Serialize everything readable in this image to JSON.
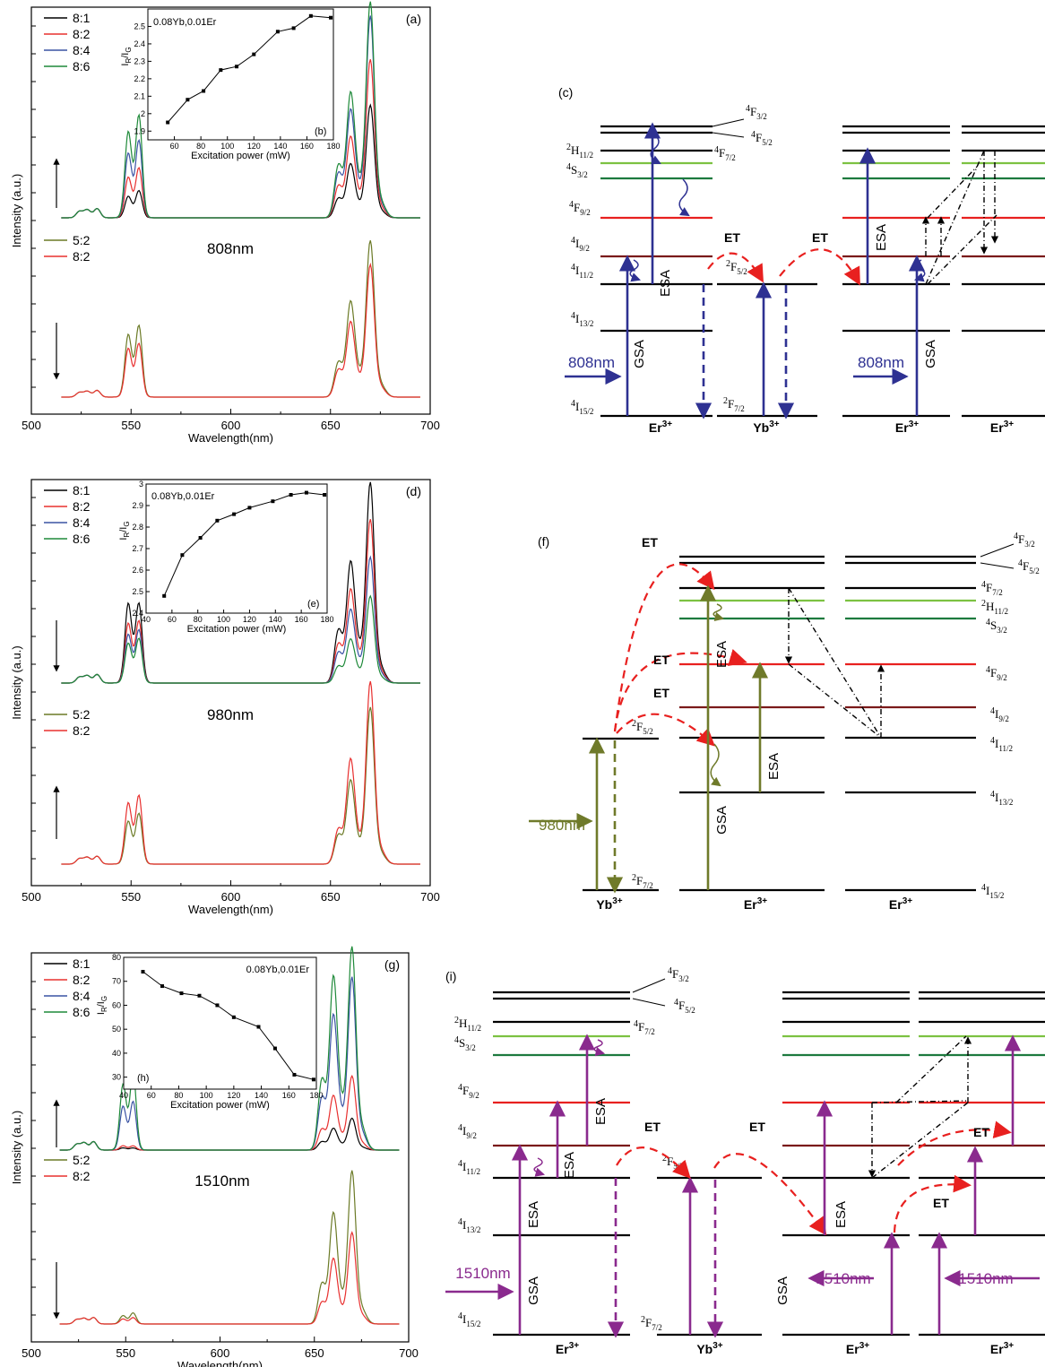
{
  "chart_data": [
    {
      "id": "a",
      "type": "line",
      "panel_label": "(a)",
      "xlabel": "Wavelength(nm)",
      "ylabel": "Intensity (a.u.)",
      "xlim": [
        500,
        700
      ],
      "xticks": [
        500,
        550,
        600,
        650,
        700
      ],
      "excitation": "808nm",
      "legend_top": [
        "8:1",
        "8:2",
        "8:4",
        "8:6"
      ],
      "legend_bottom": [
        "5:2",
        "8:2"
      ],
      "series_top": [
        {
          "name": "8:1",
          "color": "#000000",
          "g1": 0.09,
          "g2": 0.12,
          "r1": 0.17,
          "r2": 0.23,
          "r3": 0.53
        },
        {
          "name": "8:2",
          "color": "#e8302f",
          "g1": 0.17,
          "g2": 0.22,
          "r1": 0.28,
          "r2": 0.34,
          "r3": 0.74
        },
        {
          "name": "8:4",
          "color": "#3a53a4",
          "g1": 0.27,
          "g2": 0.34,
          "r1": 0.39,
          "r2": 0.45,
          "r3": 0.94
        },
        {
          "name": "8:6",
          "color": "#1f8a3a",
          "g1": 0.36,
          "g2": 0.45,
          "r1": 0.46,
          "r2": 0.52,
          "r3": 1.0
        }
      ],
      "series_bottom": [
        {
          "name": "5:2",
          "color": "#6b7a26",
          "g1": 0.36,
          "g2": 0.43,
          "r1": 0.42,
          "r2": 0.56,
          "r3": 1.0
        },
        {
          "name": "8:2",
          "color": "#e8302f",
          "g1": 0.28,
          "g2": 0.32,
          "r1": 0.33,
          "r2": 0.44,
          "r3": 0.85
        }
      ],
      "arrow_top": "up",
      "arrow_bottom": "down",
      "inset": {
        "panel_label": "(b)",
        "text": "0.08Yb,0.01Er",
        "xlabel": "Excitation power (mW)",
        "ylabel": "IR/IG",
        "xlim": [
          40,
          180
        ],
        "xticks": [
          60,
          80,
          100,
          120,
          140,
          160,
          180
        ],
        "ylim": [
          1.85,
          2.6
        ],
        "yticks": [
          1.9,
          2.0,
          2.1,
          2.2,
          2.3,
          2.4,
          2.5
        ],
        "x": [
          55,
          70,
          82,
          95,
          107,
          120,
          138,
          150,
          163,
          178
        ],
        "y": [
          1.95,
          2.08,
          2.13,
          2.25,
          2.27,
          2.34,
          2.47,
          2.49,
          2.56,
          2.55
        ]
      }
    },
    {
      "id": "d",
      "type": "line",
      "panel_label": "(d)",
      "xlabel": "Wavelength(nm)",
      "ylabel": "Intensity (a.u.)",
      "xlim": [
        500,
        700
      ],
      "xticks": [
        500,
        550,
        600,
        650,
        700
      ],
      "excitation": "980nm",
      "legend_top": [
        "8:1",
        "8:2",
        "8:4",
        "8:6"
      ],
      "legend_bottom": [
        "5:2",
        "8:2"
      ],
      "series_top": [
        {
          "name": "8:1",
          "color": "#000000",
          "g1": 0.36,
          "g2": 0.37,
          "r1": 0.5,
          "r2": 0.54,
          "r3": 1.0
        },
        {
          "name": "8:2",
          "color": "#e8302f",
          "g1": 0.27,
          "g2": 0.29,
          "r1": 0.37,
          "r2": 0.42,
          "r3": 0.82
        },
        {
          "name": "8:4",
          "color": "#3a53a4",
          "g1": 0.22,
          "g2": 0.25,
          "r1": 0.29,
          "r2": 0.33,
          "r3": 0.63
        },
        {
          "name": "8:6",
          "color": "#1f8a3a",
          "g1": 0.18,
          "g2": 0.21,
          "r1": 0.16,
          "r2": 0.2,
          "r3": 0.44
        }
      ],
      "series_bottom": [
        {
          "name": "5:2",
          "color": "#6b7a26",
          "g1": 0.21,
          "g2": 0.26,
          "r1": 0.3,
          "r2": 0.42,
          "r3": 0.86
        },
        {
          "name": "8:2",
          "color": "#e8302f",
          "g1": 0.3,
          "g2": 0.35,
          "r1": 0.36,
          "r2": 0.53,
          "r3": 1.0
        }
      ],
      "arrow_top": "down",
      "arrow_bottom": "up",
      "inset": {
        "panel_label": "(e)",
        "text": "0.08Yb,0.01Er",
        "xlabel": "Excitation power (mW)",
        "ylabel": "IR/IG",
        "xlim": [
          40,
          180
        ],
        "xticks": [
          40,
          60,
          80,
          100,
          120,
          140,
          160,
          180
        ],
        "ylim": [
          2.4,
          3.0
        ],
        "yticks": [
          2.4,
          2.5,
          2.6,
          2.7,
          2.8,
          2.9,
          3.0
        ],
        "x": [
          54,
          68,
          82,
          95,
          108,
          120,
          138,
          152,
          164,
          178
        ],
        "y": [
          2.48,
          2.67,
          2.75,
          2.83,
          2.86,
          2.89,
          2.92,
          2.95,
          2.96,
          2.95
        ]
      }
    },
    {
      "id": "g",
      "type": "line",
      "panel_label": "(g)",
      "xlabel": "Wavelength(nm)",
      "ylabel": "Intensity (a.u.)",
      "xlim": [
        500,
        700
      ],
      "xticks": [
        500,
        550,
        600,
        650,
        700
      ],
      "excitation": "1510nm",
      "legend_top": [
        "8:1",
        "8:2",
        "8:4",
        "8:6"
      ],
      "legend_bottom": [
        "5:2",
        "8:2"
      ],
      "series_top": [
        {
          "name": "8:1",
          "color": "#000000",
          "g1": 0.01,
          "g2": 0.01,
          "r1": 0.08,
          "r2": 0.1,
          "r3": 0.16
        },
        {
          "name": "8:2",
          "color": "#e8302f",
          "g1": 0.02,
          "g2": 0.02,
          "r1": 0.2,
          "r2": 0.25,
          "r3": 0.37
        },
        {
          "name": "8:4",
          "color": "#3a53a4",
          "g1": 0.2,
          "g2": 0.23,
          "r1": 0.5,
          "r2": 0.62,
          "r3": 0.86
        },
        {
          "name": "8:6",
          "color": "#1f8a3a",
          "g1": 0.3,
          "g2": 0.37,
          "r1": 0.67,
          "r2": 0.79,
          "r3": 1.0
        }
      ],
      "series_bottom": [
        {
          "name": "5:2",
          "color": "#6b7a26",
          "g1": 0.05,
          "g2": 0.07,
          "r1": 0.5,
          "r2": 0.67,
          "r3": 1.0
        },
        {
          "name": "8:2",
          "color": "#e8302f",
          "g1": 0.03,
          "g2": 0.04,
          "r1": 0.27,
          "r2": 0.4,
          "r3": 0.6
        }
      ],
      "arrow_top": "up",
      "arrow_bottom": "down",
      "inset": {
        "panel_label": "(h)",
        "text": "0.08Yb,0.01Er",
        "xlabel": "Excitation power (mW)",
        "ylabel": "IR/IG",
        "xlim": [
          40,
          180
        ],
        "xticks": [
          40,
          60,
          80,
          100,
          120,
          140,
          160,
          180
        ],
        "ylim": [
          25,
          80
        ],
        "yticks": [
          30,
          40,
          50,
          60,
          70,
          80
        ],
        "x": [
          54,
          68,
          82,
          95,
          108,
          120,
          138,
          150,
          164,
          178
        ],
        "y": [
          74,
          68,
          65,
          64,
          60,
          55,
          51,
          42,
          31,
          29
        ]
      }
    }
  ],
  "diagrams": {
    "c": {
      "panel_label": "(c)",
      "excitation": "808nm",
      "ions": [
        "Er3+",
        "Yb3+",
        "Er3+",
        "Er3+"
      ],
      "level_labels": [
        "4F3/2",
        "4F5/2",
        "4F7/2",
        "2H11/2",
        "4S3/2",
        "4F9/2",
        "4I9/2",
        "4I11/2",
        "4I13/2",
        "4I15/2",
        "2F5/2",
        "2F7/2"
      ],
      "texts": [
        "GSA",
        "ESA",
        "ET",
        "ET",
        "ESA",
        "GSA"
      ]
    },
    "f": {
      "panel_label": "(f)",
      "excitation": "980nm",
      "ions": [
        "Yb3+",
        "Er3+",
        "Er3+"
      ],
      "level_labels": [
        "4F3/2",
        "4F5/2",
        "4F7/2",
        "2H11/2",
        "4S3/2",
        "4F9/2",
        "4I9/2",
        "4I11/2",
        "4I13/2",
        "4I15/2",
        "2F5/2",
        "2F7/2"
      ],
      "texts": [
        "ET",
        "ET",
        "ET",
        "ESA",
        "ESA",
        "GSA"
      ]
    },
    "i": {
      "panel_label": "(i)",
      "excitation": "1510nm",
      "ions": [
        "Er3+",
        "Yb3+",
        "Er3+",
        "Er3+"
      ],
      "level_labels": [
        "4F3/2",
        "4F5/2",
        "4F7/2",
        "2H11/2",
        "4S3/2",
        "4F9/2",
        "4I9/2",
        "4I11/2",
        "4I13/2",
        "4I15/2",
        "2F5/2",
        "2F7/2"
      ],
      "texts": [
        "ESA",
        "ESA",
        "ESA",
        "GSA",
        "ET",
        "ET",
        "ESA",
        "GSA",
        "ET",
        "ET"
      ]
    }
  },
  "colors": {
    "black": "#000000",
    "red": "#e8302f",
    "blue": "#3a53a4",
    "green": "#1f8a3a",
    "olive": "#6b7a26",
    "light_green": "#7cc242",
    "dark_green": "#1d7a3e",
    "level_red": "#e8201f",
    "dark_red": "#7a1a1a",
    "pump_blue": "#2e3192",
    "pump_olive": "#6f7a2a",
    "pump_purple": "#8a2a8e",
    "et_red": "#e8201f"
  }
}
